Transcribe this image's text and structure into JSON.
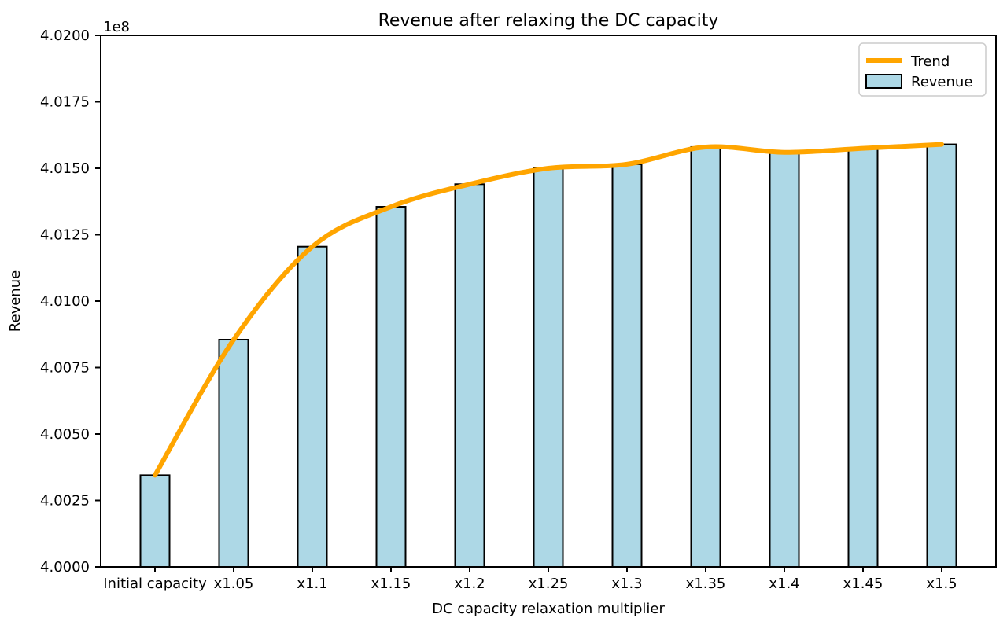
{
  "chart_data": {
    "type": "bar",
    "title": "Revenue after relaxing the DC capacity",
    "xlabel": "DC capacity relaxation multiplier",
    "ylabel": "Revenue",
    "offset_label": "1e8",
    "categories": [
      "Initial capacity",
      "x1.05",
      "x1.1",
      "x1.15",
      "x1.2",
      "x1.25",
      "x1.3",
      "x1.35",
      "x1.4",
      "x1.45",
      "x1.5"
    ],
    "series": [
      {
        "name": "Trend",
        "type": "line",
        "color": "#FFA500",
        "values": [
          400345000,
          400855000,
          401205000,
          401355000,
          401440000,
          401500000,
          401515000,
          401580000,
          401560000,
          401575000,
          401590000
        ]
      },
      {
        "name": "Revenue",
        "type": "bar",
        "fill": "#ADD8E6",
        "edge": "#000000",
        "values": [
          400345000,
          400855000,
          401205000,
          401355000,
          401440000,
          401500000,
          401515000,
          401580000,
          401560000,
          401575000,
          401590000
        ]
      }
    ],
    "ylim": [
      400000000,
      402000000
    ],
    "yticks": [
      {
        "label": "4.0000",
        "value": 400000000
      },
      {
        "label": "4.0025",
        "value": 400250000
      },
      {
        "label": "4.0050",
        "value": 400500000
      },
      {
        "label": "4.0075",
        "value": 400750000
      },
      {
        "label": "4.0100",
        "value": 401000000
      },
      {
        "label": "4.0125",
        "value": 401250000
      },
      {
        "label": "4.0150",
        "value": 401500000
      },
      {
        "label": "4.0175",
        "value": 401750000
      },
      {
        "label": "4.0200",
        "value": 402000000
      }
    ],
    "grid": false,
    "legend": {
      "position": "upper right",
      "entries": [
        "Trend",
        "Revenue"
      ]
    },
    "colors": {
      "trend": "#FFA500",
      "bar_fill": "#ADD8E6",
      "bar_edge": "#000000",
      "axis": "#000000",
      "legend_border": "#CCCCCC",
      "background": "#FFFFFF"
    }
  }
}
